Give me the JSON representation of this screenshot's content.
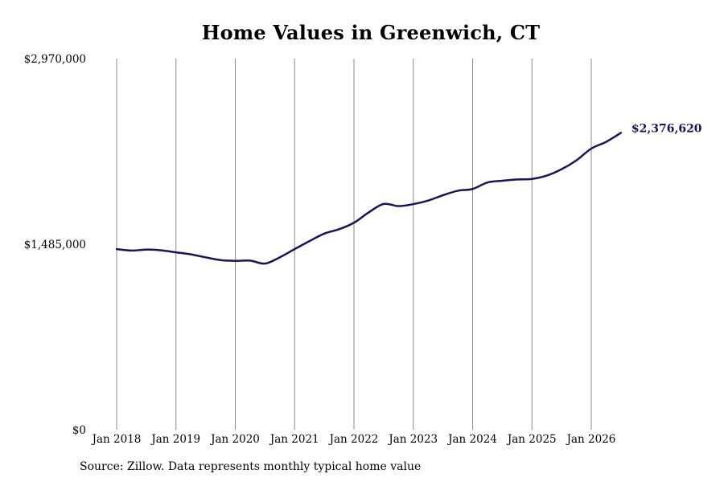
{
  "chart_data": {
    "type": "line",
    "title": "Home Values in Greenwich, CT",
    "xlabel": "",
    "ylabel": "",
    "ylim": [
      0,
      2970000
    ],
    "y_ticks": [
      {
        "value": 0,
        "label": "$0"
      },
      {
        "value": 1485000,
        "label": "$1,485,000"
      },
      {
        "value": 2970000,
        "label": "$2,970,000"
      }
    ],
    "x_ticks": [
      {
        "value": "2018-01",
        "label": "Jan 2018"
      },
      {
        "value": "2019-01",
        "label": "Jan 2019"
      },
      {
        "value": "2020-01",
        "label": "Jan 2020"
      },
      {
        "value": "2021-01",
        "label": "Jan 2021"
      },
      {
        "value": "2022-01",
        "label": "Jan 2022"
      },
      {
        "value": "2023-01",
        "label": "Jan 2023"
      },
      {
        "value": "2024-01",
        "label": "Jan 2024"
      },
      {
        "value": "2025-01",
        "label": "Jan 2025"
      },
      {
        "value": "2026-01",
        "label": "Jan 2026"
      }
    ],
    "xlim": [
      "2018-01",
      "2026-07"
    ],
    "grid": {
      "vertical": true,
      "horizontal": false
    },
    "line_color": "#14145f",
    "series": [
      {
        "x": [
          "2018-01",
          "2018-04",
          "2018-07",
          "2018-10",
          "2019-01",
          "2019-04",
          "2019-07",
          "2019-10",
          "2020-01",
          "2020-04",
          "2020-07",
          "2020-10",
          "2021-01",
          "2021-04",
          "2021-07",
          "2021-10",
          "2022-01",
          "2022-04",
          "2022-07",
          "2022-10",
          "2023-01",
          "2023-04",
          "2023-07",
          "2023-10",
          "2024-01",
          "2024-04",
          "2024-07",
          "2024-10",
          "2025-01",
          "2025-04",
          "2025-07",
          "2025-10",
          "2026-01",
          "2026-04",
          "2026-07"
        ],
        "values": [
          1446000,
          1434000,
          1442000,
          1436000,
          1420000,
          1404000,
          1380000,
          1358000,
          1352000,
          1354000,
          1330000,
          1380000,
          1446000,
          1510000,
          1570000,
          1605000,
          1657000,
          1740000,
          1807000,
          1790000,
          1806000,
          1834000,
          1877000,
          1913000,
          1927000,
          1979000,
          1993000,
          2003000,
          2007000,
          2034000,
          2085000,
          2156000,
          2250000,
          2304000,
          2376620
        ]
      }
    ],
    "annotations": [
      {
        "label": "$2,376,620",
        "x": "2026-07",
        "y": 2376620
      }
    ]
  },
  "source_note": "Source: Zillow. Data represents monthly typical home value"
}
